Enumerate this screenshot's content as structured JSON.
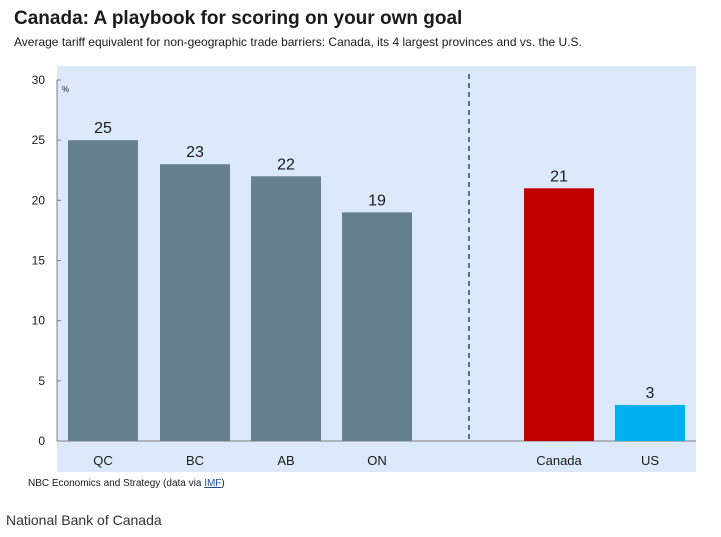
{
  "header": {
    "title": "Canada: A playbook for scoring on your own goal",
    "subtitle": "Average tariff equivalent for non-geographic trade barriers: Canada, its 4 largest provinces and vs. the U.S."
  },
  "chart_data": {
    "type": "bar",
    "title": "Canada: A playbook for scoring on your own goal",
    "subtitle": "Average tariff equivalent for non-geographic trade barriers: Canada, its 4 largest provinces and vs. the U.S.",
    "categories": [
      "QC",
      "BC",
      "AB",
      "ON",
      "Canada",
      "US"
    ],
    "values": [
      25,
      23,
      22,
      19,
      21,
      3
    ],
    "data_labels": [
      "25",
      "23",
      "22",
      "19",
      "21",
      "3"
    ],
    "bar_colors": [
      "#65818e",
      "#65818e",
      "#65818e",
      "#65818e",
      "#c00000",
      "#00b0f0"
    ],
    "y_unit": "%",
    "ylim": [
      0,
      30
    ],
    "y_ticks": [
      "0",
      "5",
      "10",
      "15",
      "20",
      "25",
      "30"
    ],
    "xlabel": "",
    "ylabel": "",
    "grid": false,
    "legend": "none",
    "separator": "dashed vertical line between ON and Canada"
  },
  "colors": {
    "plot_background": "#dce9fb",
    "provinces": "#65818e",
    "canada": "#c00000",
    "us": "#00b0f0",
    "separator": "#1f4e79"
  },
  "footer": {
    "source_prefix": "NBC Economics and Strategy (data via ",
    "source_link": "IMF",
    "source_suffix": ")",
    "caption": "National Bank of Canada"
  }
}
